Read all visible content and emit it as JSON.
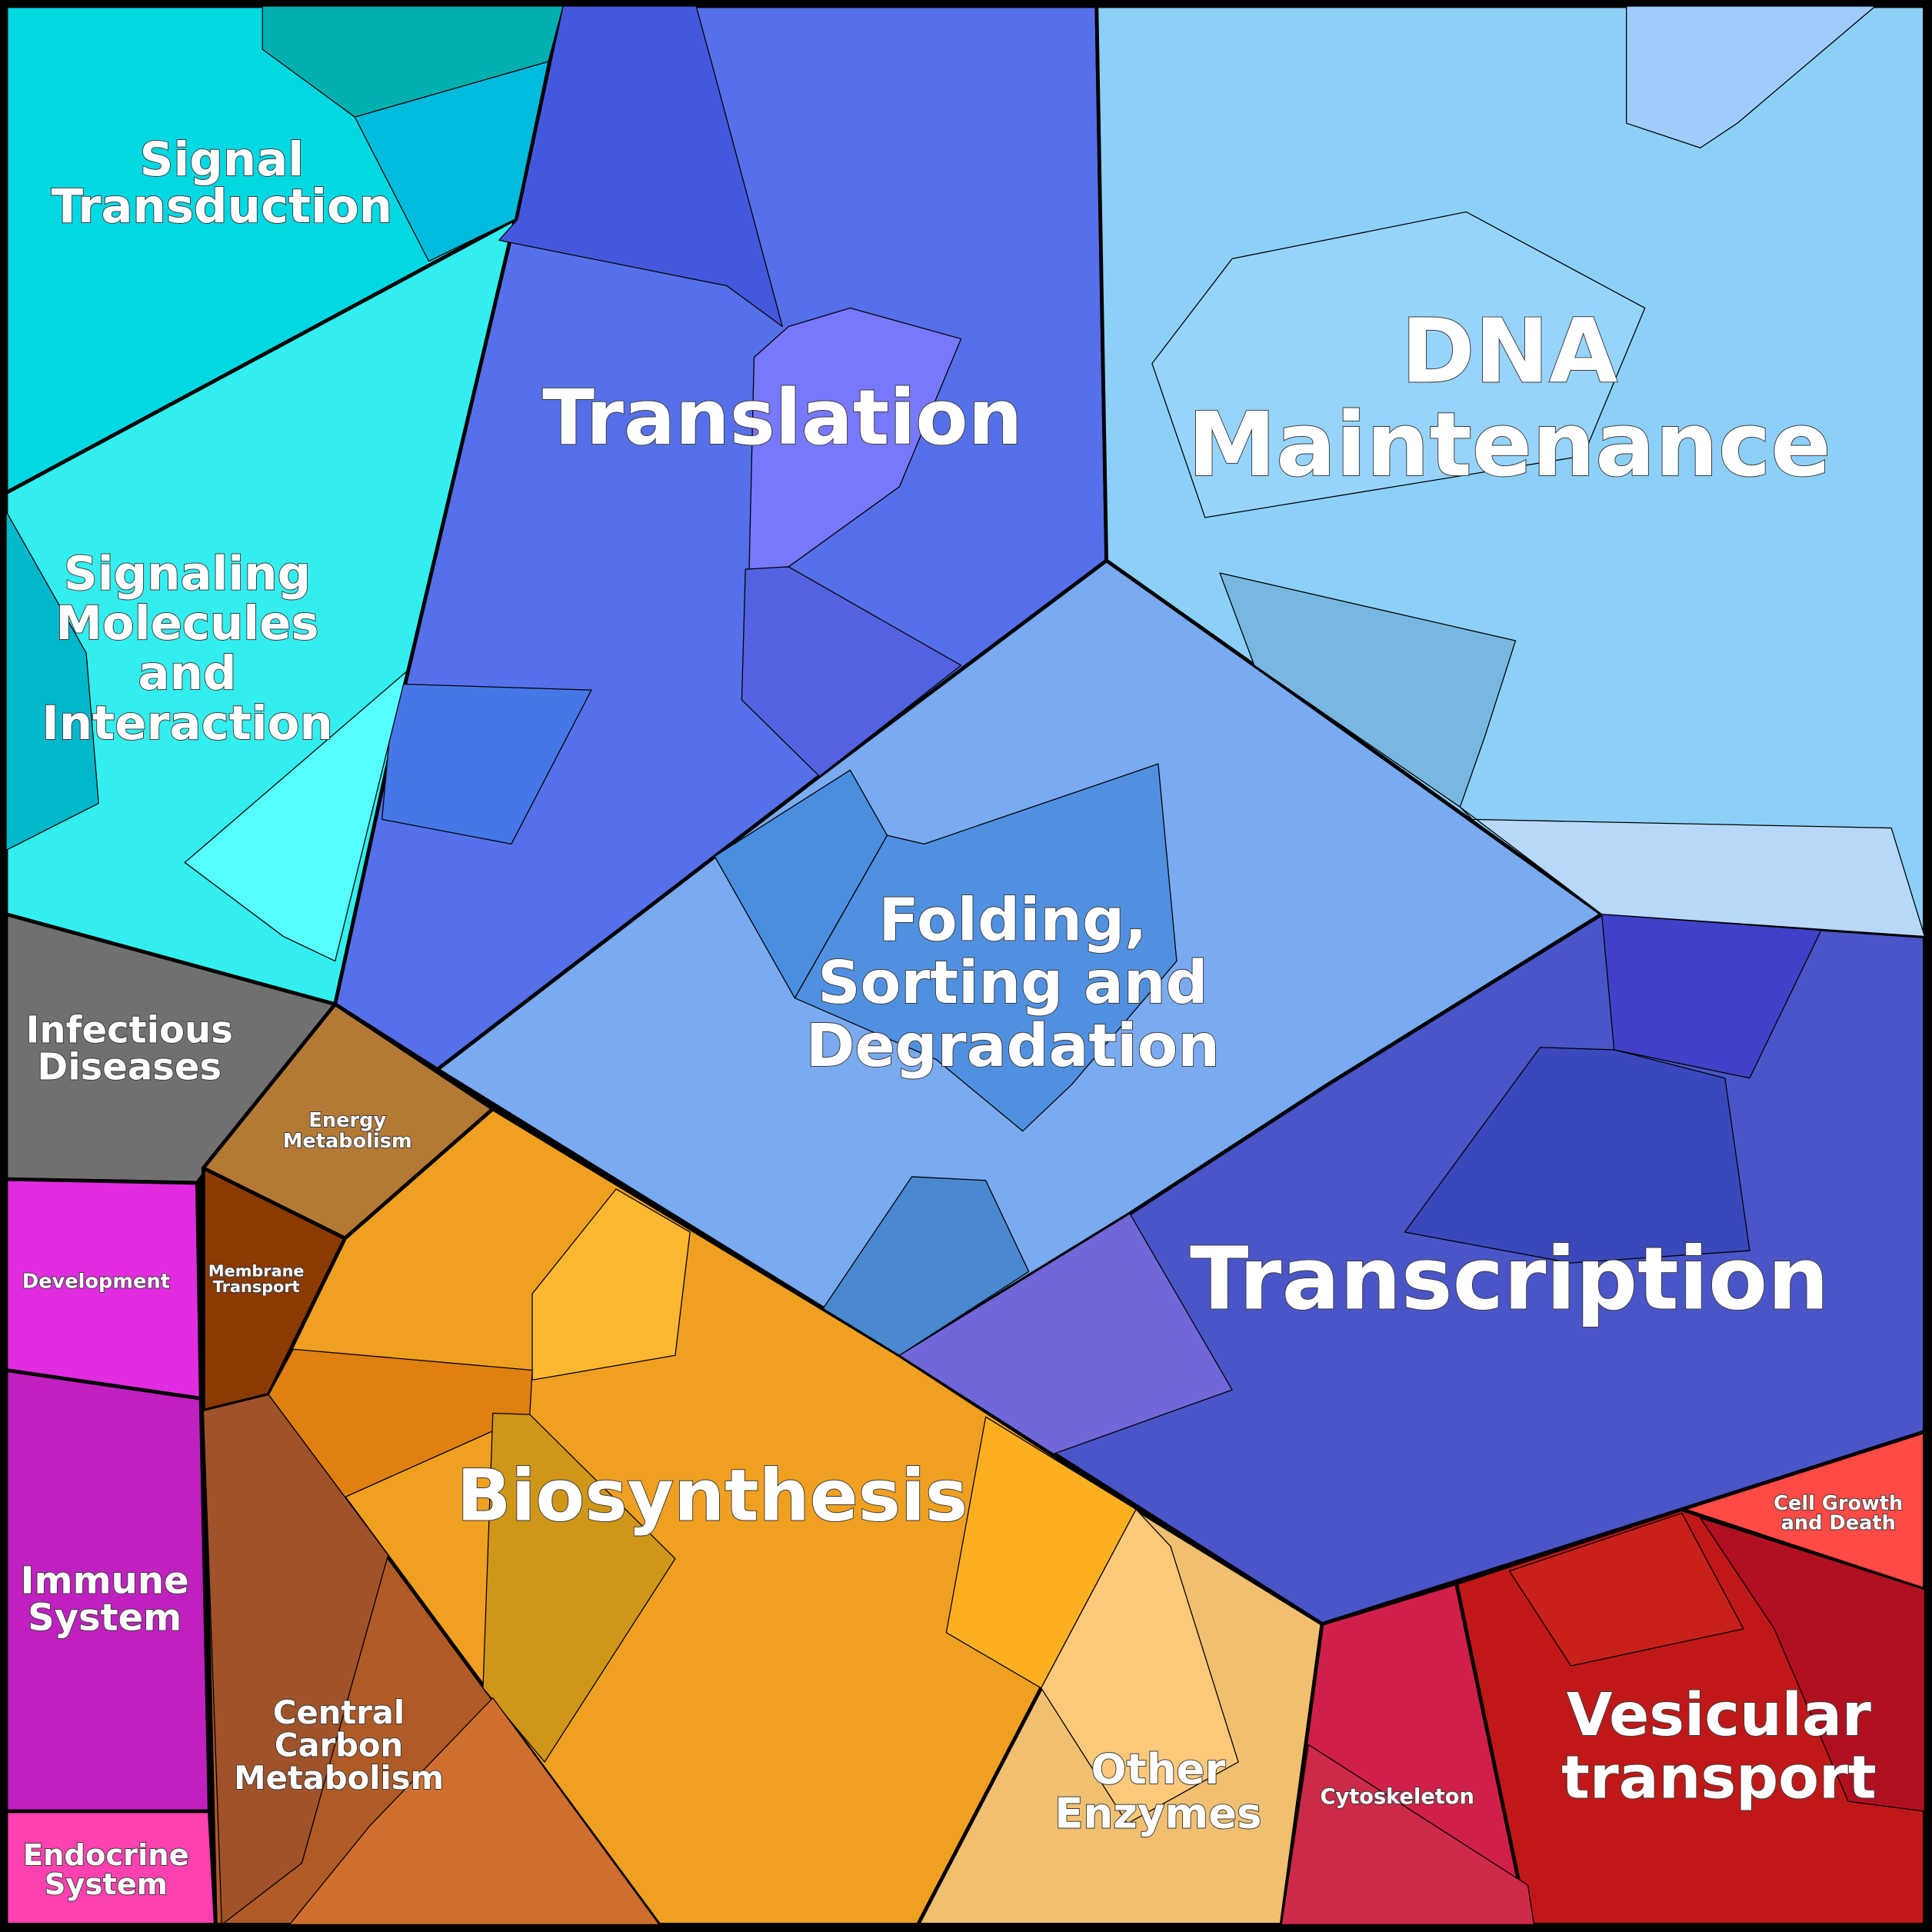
{
  "regions": [
    {
      "lines": [
        "Signal",
        "Transduction"
      ]
    },
    {
      "lines": [
        "Signaling",
        "Molecules",
        "and",
        "Interaction"
      ]
    },
    {
      "lines": [
        "Translation"
      ]
    },
    {
      "lines": [
        "DNA",
        "Maintenance"
      ]
    },
    {
      "lines": [
        "Folding,",
        "Sorting and",
        "Degradation"
      ]
    },
    {
      "lines": [
        "Transcription"
      ]
    },
    {
      "lines": [
        "Infectious",
        "Diseases"
      ]
    },
    {
      "lines": [
        "Energy",
        "Metabolism"
      ]
    },
    {
      "lines": [
        "Membrane",
        "Transport"
      ]
    },
    {
      "lines": [
        "Development"
      ]
    },
    {
      "lines": [
        "Immune",
        "System"
      ]
    },
    {
      "lines": [
        "Endocrine",
        "System"
      ]
    },
    {
      "lines": [
        "Central",
        "Carbon",
        "Metabolism"
      ]
    },
    {
      "lines": [
        "Biosynthesis"
      ]
    },
    {
      "lines": [
        "Other",
        "Enzymes"
      ]
    },
    {
      "lines": [
        "Cytoskeleton"
      ]
    },
    {
      "lines": [
        "Vesicular",
        "transport"
      ]
    },
    {
      "lines": [
        "Cell Growth",
        "and Death"
      ]
    }
  ]
}
